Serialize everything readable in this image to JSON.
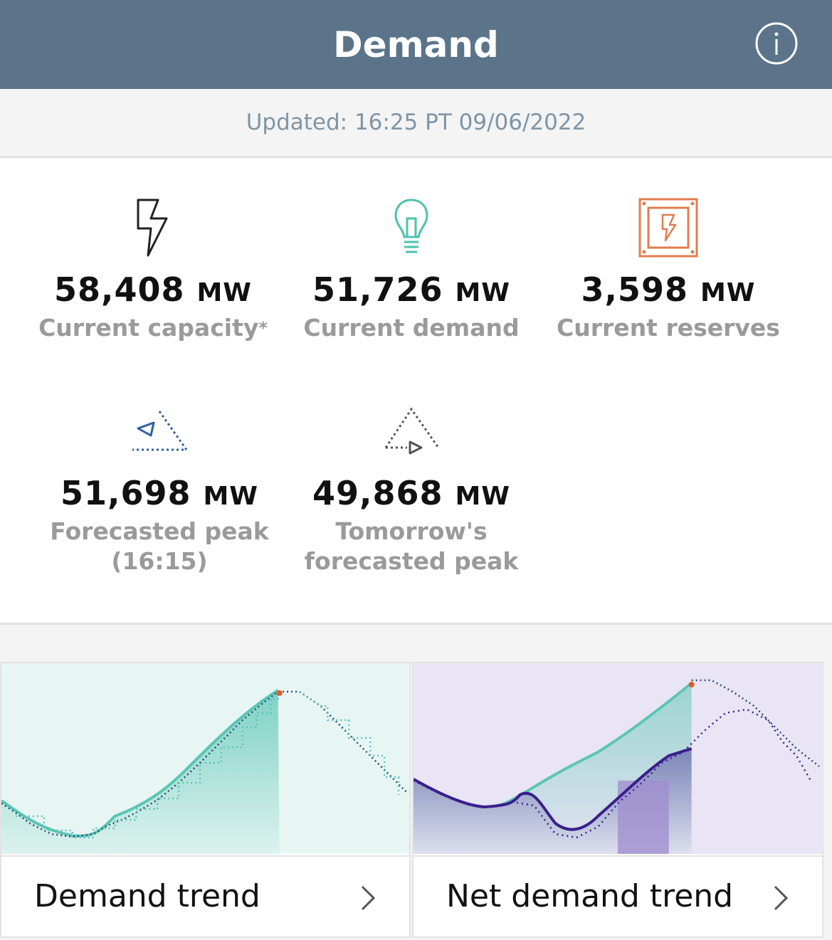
{
  "header": {
    "title": "Demand",
    "info_icon": "info-circle-icon"
  },
  "updated": {
    "text": "Updated: 16:25 PT 09/06/2022"
  },
  "stats": [
    {
      "icon": "lightning-bolt-icon",
      "value": "58,408",
      "unit": "MW",
      "label": "Current capacity",
      "label_suffix": "*"
    },
    {
      "icon": "lightbulb-icon",
      "value": "51,726",
      "unit": "MW",
      "label": "Current demand"
    },
    {
      "icon": "reserves-box-icon",
      "value": "3,598",
      "unit": "MW",
      "label": "Current reserves"
    },
    {
      "icon": "forecast-peak-icon",
      "value": "51,698",
      "unit": "MW",
      "label_line1": "Forecasted peak",
      "label_line2": "(16:15)"
    },
    {
      "icon": "tomorrow-peak-icon",
      "value": "49,868",
      "unit": "MW",
      "label_line1": "Tomorrow's",
      "label_line2": "forecasted peak"
    }
  ],
  "cards": {
    "demand_trend": {
      "label": "Demand trend",
      "chevron": "chevron-right-icon"
    },
    "net_demand_trend": {
      "label": "Net demand trend",
      "chevron": "chevron-right-icon"
    }
  },
  "colors": {
    "header": "#5b7489",
    "teal": "#5bc5b4",
    "navy_dots": "#2a4c7a",
    "purple": "#3a1f8c",
    "orange": "#e07d4f",
    "blue_icon": "#2f5fa0",
    "demand_chart_bg": "#e7f6f3",
    "net_chart_bg": "#e9e5f4"
  }
}
